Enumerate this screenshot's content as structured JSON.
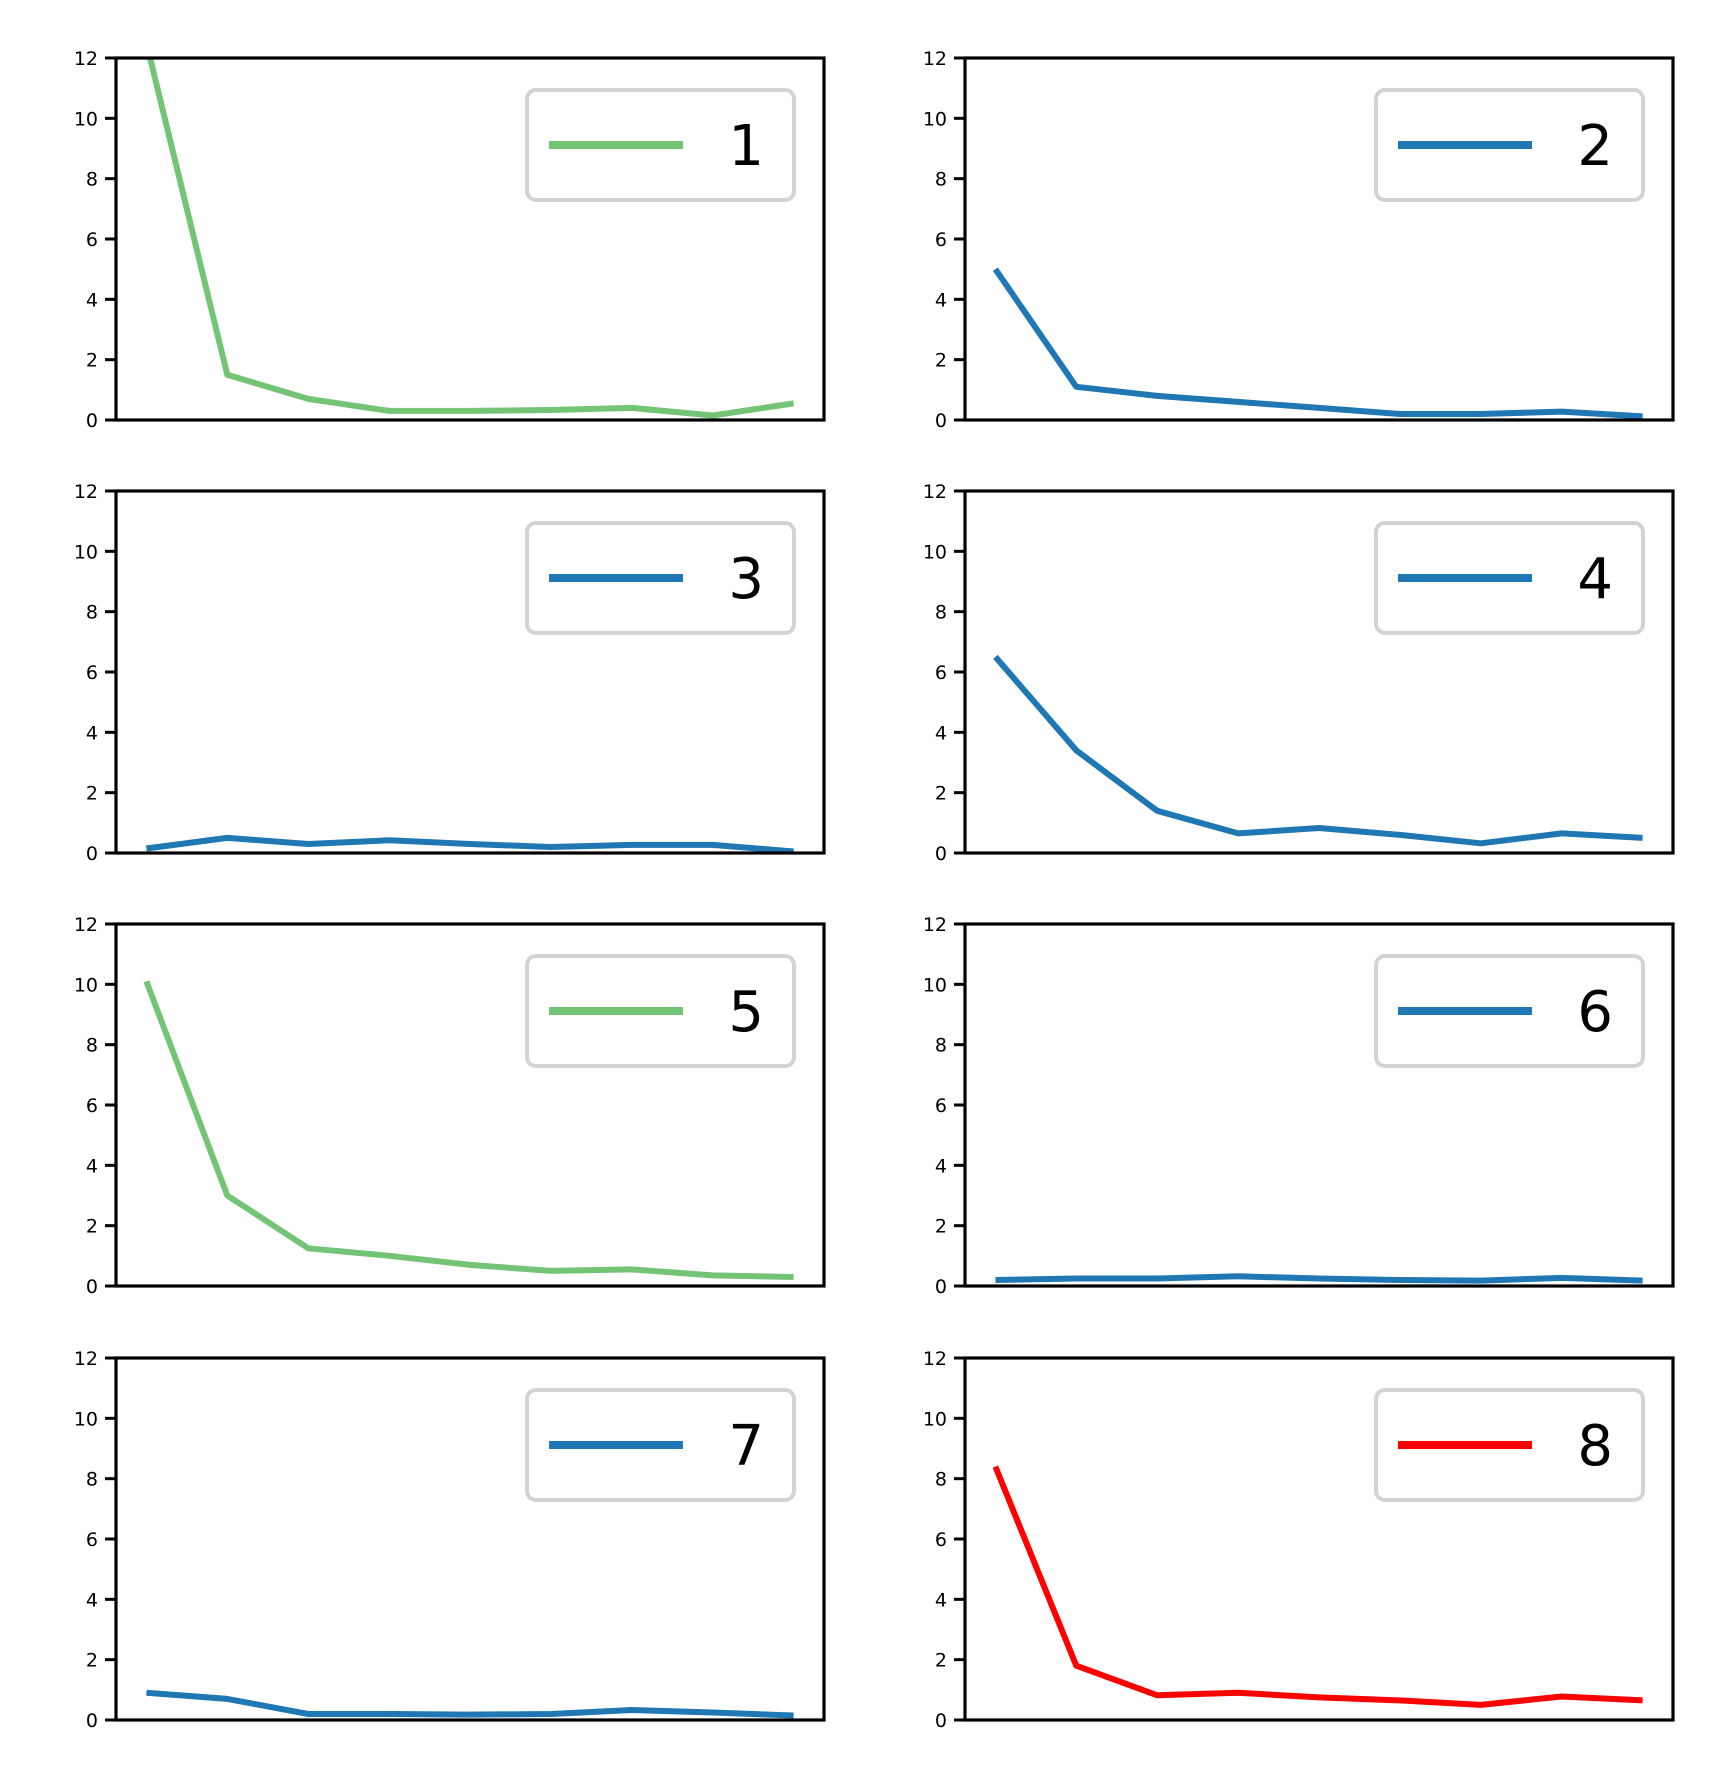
{
  "chart_data": [
    {
      "type": "line",
      "x": [
        1,
        2,
        3,
        4,
        5,
        6,
        7,
        8,
        9
      ],
      "series": [
        {
          "name": "1",
          "color": "#74c476",
          "values": [
            12.5,
            1.5,
            0.7,
            0.3,
            0.3,
            0.33,
            0.4,
            0.15,
            0.55
          ]
        }
      ],
      "ylim": [
        0,
        12
      ],
      "yticks": [
        0,
        2,
        4,
        6,
        8,
        10,
        12
      ],
      "legend": "upper right",
      "xlabel": "",
      "ylabel": "",
      "title": ""
    },
    {
      "type": "line",
      "x": [
        1,
        2,
        3,
        4,
        5,
        6,
        7,
        8,
        9
      ],
      "series": [
        {
          "name": "2",
          "color": "#1f77b4",
          "values": [
            5.0,
            1.1,
            0.8,
            0.6,
            0.4,
            0.2,
            0.2,
            0.28,
            0.12
          ]
        }
      ],
      "ylim": [
        0,
        12
      ],
      "yticks": [
        0,
        2,
        4,
        6,
        8,
        10,
        12
      ],
      "legend": "upper right",
      "xlabel": "",
      "ylabel": "",
      "title": ""
    },
    {
      "type": "line",
      "x": [
        1,
        2,
        3,
        4,
        5,
        6,
        7,
        8,
        9
      ],
      "series": [
        {
          "name": "3",
          "color": "#1f77b4",
          "values": [
            0.15,
            0.5,
            0.3,
            0.42,
            0.3,
            0.2,
            0.27,
            0.27,
            0.05
          ]
        }
      ],
      "ylim": [
        0,
        12
      ],
      "yticks": [
        0,
        2,
        4,
        6,
        8,
        10,
        12
      ],
      "legend": "upper right",
      "xlabel": "",
      "ylabel": "",
      "title": ""
    },
    {
      "type": "line",
      "x": [
        1,
        2,
        3,
        4,
        5,
        6,
        7,
        8,
        9
      ],
      "series": [
        {
          "name": "4",
          "color": "#1f77b4",
          "values": [
            6.5,
            3.4,
            1.4,
            0.65,
            0.83,
            0.6,
            0.32,
            0.65,
            0.5
          ]
        }
      ],
      "ylim": [
        0,
        12
      ],
      "yticks": [
        0,
        2,
        4,
        6,
        8,
        10,
        12
      ],
      "legend": "upper right",
      "xlabel": "",
      "ylabel": "",
      "title": ""
    },
    {
      "type": "line",
      "x": [
        1,
        2,
        3,
        4,
        5,
        6,
        7,
        8,
        9
      ],
      "series": [
        {
          "name": "5",
          "color": "#74c476",
          "values": [
            10.1,
            3.0,
            1.25,
            1.0,
            0.7,
            0.5,
            0.55,
            0.35,
            0.3
          ]
        }
      ],
      "ylim": [
        0,
        12
      ],
      "yticks": [
        0,
        2,
        4,
        6,
        8,
        10,
        12
      ],
      "legend": "upper right",
      "xlabel": "",
      "ylabel": "",
      "title": ""
    },
    {
      "type": "line",
      "x": [
        1,
        2,
        3,
        4,
        5,
        6,
        7,
        8,
        9
      ],
      "series": [
        {
          "name": "6",
          "color": "#1f77b4",
          "values": [
            0.2,
            0.25,
            0.25,
            0.32,
            0.25,
            0.2,
            0.18,
            0.27,
            0.18
          ]
        }
      ],
      "ylim": [
        0,
        12
      ],
      "yticks": [
        0,
        2,
        4,
        6,
        8,
        10,
        12
      ],
      "legend": "upper right",
      "xlabel": "",
      "ylabel": "",
      "title": ""
    },
    {
      "type": "line",
      "x": [
        1,
        2,
        3,
        4,
        5,
        6,
        7,
        8,
        9
      ],
      "series": [
        {
          "name": "7",
          "color": "#1f77b4",
          "values": [
            0.9,
            0.7,
            0.2,
            0.2,
            0.18,
            0.2,
            0.33,
            0.25,
            0.15
          ]
        }
      ],
      "ylim": [
        0,
        12
      ],
      "yticks": [
        0,
        2,
        4,
        6,
        8,
        10,
        12
      ],
      "legend": "upper right",
      "xlabel": "",
      "ylabel": "",
      "title": ""
    },
    {
      "type": "line",
      "x": [
        1,
        2,
        3,
        4,
        5,
        6,
        7,
        8,
        9
      ],
      "series": [
        {
          "name": "8",
          "color": "#ff0000",
          "values": [
            8.4,
            1.8,
            0.82,
            0.9,
            0.75,
            0.65,
            0.5,
            0.78,
            0.65
          ]
        }
      ],
      "ylim": [
        0,
        12
      ],
      "yticks": [
        0,
        2,
        4,
        6,
        8,
        10,
        12
      ],
      "legend": "upper right",
      "xlabel": "",
      "ylabel": "",
      "title": ""
    }
  ]
}
